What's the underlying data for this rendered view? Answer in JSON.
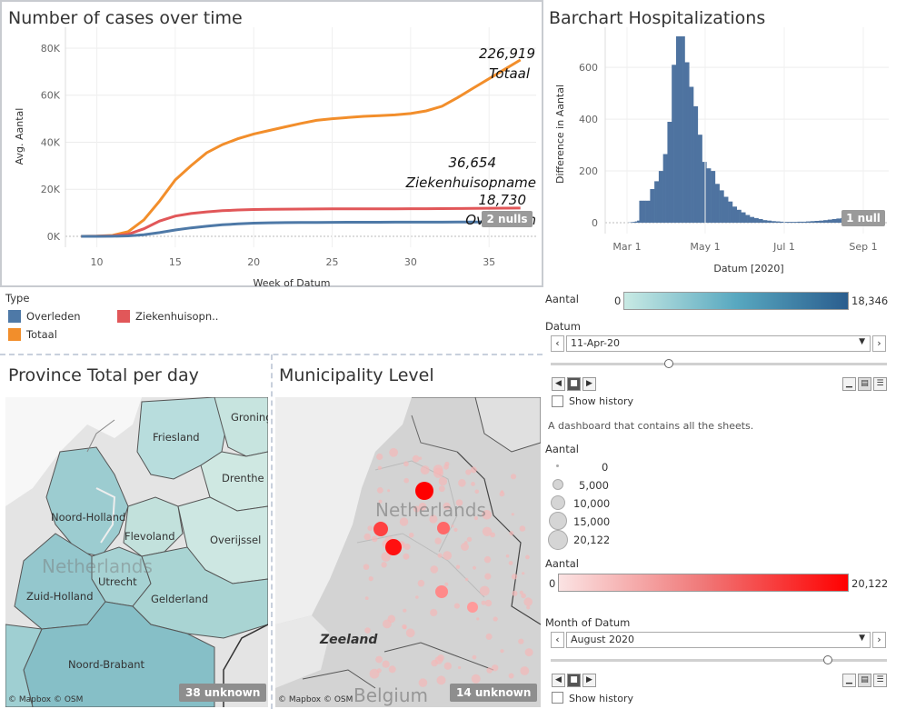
{
  "line_panel": {
    "title": "Number of cases over time",
    "ylabel": "Avg. Aantal",
    "xlabel": "Week of Datum",
    "y_ticks": [
      "0K",
      "20K",
      "40K",
      "60K",
      "80K"
    ],
    "x_ticks": [
      "10",
      "15",
      "20",
      "25",
      "30",
      "35"
    ],
    "label_totaal_value": "226,919",
    "label_totaal_name": "Totaal",
    "label_zieken_value": "36,654",
    "label_zieken_name": "Ziekenhuisopname",
    "label_overleden_value": "18,730",
    "label_overleden_name": "Overleden",
    "null_badge": "2 nulls"
  },
  "bar_panel": {
    "title": "Barchart Hospitalizations",
    "ylabel": "Difference in Aantal",
    "xlabel": "Datum [2020]",
    "y_ticks": [
      "0",
      "200",
      "400",
      "600"
    ],
    "x_ticks": [
      "Mar 1",
      "May 1",
      "Jul 1",
      "Sep 1"
    ],
    "null_badge": "1 null"
  },
  "legend": {
    "title": "Type",
    "items": [
      {
        "label": "Overleden",
        "color": "#4e79a7"
      },
      {
        "label": "Ziekenhuisopn..",
        "color": "#e15759"
      },
      {
        "label": "Totaal",
        "color": "#f28e2b"
      }
    ]
  },
  "controls_top": {
    "aantal_label": "Aantal",
    "aantal_min": "0",
    "aantal_max": "18,346",
    "datum_label": "Datum",
    "datum_value": "11-Apr-20",
    "show_history": "Show history",
    "description": "A dashboard that contains all the sheets."
  },
  "size_legend": {
    "title": "Aantal",
    "items": [
      "0",
      "5,000",
      "10,000",
      "15,000",
      "20,122"
    ]
  },
  "controls_bottom": {
    "aantal_label": "Aantal",
    "aantal_min": "0",
    "aantal_max": "20,122",
    "month_label": "Month of Datum",
    "month_value": "August 2020",
    "show_history": "Show history"
  },
  "province_map": {
    "title": "Province Total per day",
    "labels": [
      "Friesland",
      "Groning",
      "Drenthe",
      "Noord-Holland",
      "Flevoland",
      "Overijssel",
      "Utrecht",
      "Zuid-Holland",
      "Gelderland",
      "Noord-Brabant"
    ],
    "country_label": "Netherlands",
    "attribution": "© Mapbox © OSM",
    "unknown_badge": "38 unknown"
  },
  "municipality_map": {
    "title": "Municipality Level",
    "country_label": "Netherlands",
    "zeeland_label": "Zeeland",
    "belgium_label": "Belgium",
    "attribution": "© Mapbox © OSM",
    "unknown_badge": "14 unknown"
  },
  "chart_data": [
    {
      "type": "line",
      "title": "Number of cases over time",
      "xlabel": "Week of Datum",
      "ylabel": "Avg. Aantal",
      "xlim": [
        8,
        38
      ],
      "ylim": [
        0,
        85000
      ],
      "grid": true,
      "series": [
        {
          "name": "Totaal",
          "color": "#f28e2b",
          "x": [
            9,
            10,
            11,
            12,
            13,
            14,
            15,
            16,
            17,
            18,
            19,
            20,
            21,
            22,
            23,
            24,
            25,
            26,
            27,
            28,
            29,
            30,
            31,
            32,
            33,
            34,
            35,
            36,
            37
          ],
          "y": [
            0,
            100,
            400,
            2000,
            7000,
            15000,
            24000,
            30000,
            35500,
            39000,
            41500,
            43500,
            45000,
            46500,
            48000,
            49300,
            50000,
            50500,
            51000,
            51300,
            51600,
            52200,
            53300,
            55300,
            59000,
            63000,
            67000,
            71000,
            75000
          ]
        },
        {
          "name": "Ziekenhuisopname",
          "color": "#e15759",
          "x": [
            9,
            10,
            11,
            12,
            13,
            14,
            15,
            16,
            17,
            18,
            19,
            20,
            21,
            22,
            23,
            24,
            25,
            26,
            27,
            28,
            29,
            30,
            31,
            32,
            33,
            34,
            35,
            36,
            37
          ],
          "y": [
            0,
            50,
            200,
            900,
            3200,
            6500,
            8600,
            9700,
            10400,
            10900,
            11200,
            11400,
            11500,
            11550,
            11600,
            11620,
            11650,
            11670,
            11690,
            11700,
            11720,
            11740,
            11760,
            11790,
            11830,
            11880,
            11930,
            11980,
            12000
          ]
        },
        {
          "name": "Overleden",
          "color": "#4e79a7",
          "x": [
            9,
            10,
            11,
            12,
            13,
            14,
            15,
            16,
            17,
            18,
            19,
            20,
            21,
            22,
            23,
            24,
            25,
            26,
            27,
            28,
            29,
            30,
            31,
            32,
            33,
            34,
            35,
            36,
            37
          ],
          "y": [
            0,
            10,
            50,
            200,
            700,
            1600,
            2700,
            3600,
            4300,
            4900,
            5300,
            5600,
            5750,
            5850,
            5900,
            5930,
            5950,
            5970,
            5990,
            6000,
            6010,
            6020,
            6030,
            6040,
            6050,
            6060,
            6070,
            6080,
            6090
          ]
        }
      ]
    },
    {
      "type": "bar",
      "title": "Barchart Hospitalizations",
      "xlabel": "Datum [2020]",
      "ylabel": "Difference in Aantal",
      "ylim": [
        0,
        720
      ],
      "color": "#4e73a0",
      "values": [
        0,
        0,
        0,
        0,
        1,
        2,
        3,
        5,
        8,
        85,
        85,
        85,
        85,
        85,
        130,
        130,
        160,
        160,
        200,
        200,
        265,
        265,
        390,
        390,
        610,
        610,
        720,
        720,
        720,
        720,
        620,
        620,
        525,
        525,
        450,
        450,
        340,
        340,
        235,
        235,
        210,
        210,
        200,
        200,
        150,
        150,
        125,
        125,
        100,
        100,
        82,
        82,
        62,
        62,
        50,
        50,
        40,
        40,
        30,
        30,
        22,
        22,
        18,
        18,
        14,
        14,
        10,
        10,
        8,
        8,
        6,
        6,
        5,
        5,
        4,
        4,
        3,
        3,
        3,
        3,
        3,
        3,
        4,
        4,
        4,
        4,
        5,
        5,
        6,
        6,
        7,
        7,
        8,
        8,
        10,
        10,
        12,
        12,
        14,
        14,
        16,
        16,
        18,
        18,
        20,
        20,
        22,
        22,
        24,
        24,
        26,
        26,
        28,
        28,
        30,
        30,
        32,
        32,
        34,
        34
      ]
    }
  ]
}
